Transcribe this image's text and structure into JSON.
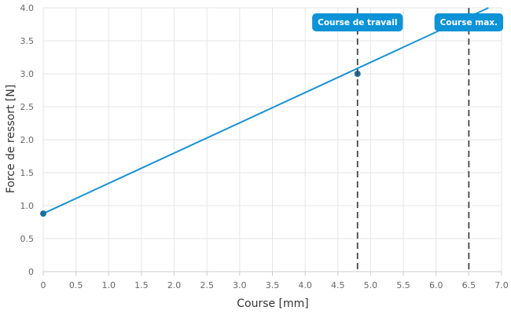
{
  "chart_data": {
    "type": "line",
    "xlabel": "Course [mm]",
    "ylabel": "Force de ressort [N]",
    "xlim": [
      0,
      7.0
    ],
    "ylim": [
      0,
      4.0
    ],
    "grid": true,
    "x_ticks": [
      "0",
      "0.5",
      "1.0",
      "1.5",
      "2.0",
      "2.5",
      "3.0",
      "3.5",
      "4.0",
      "4.5",
      "5.0",
      "5.5",
      "6.0",
      "6.5",
      "7.0"
    ],
    "y_ticks": [
      "0",
      "0.5",
      "1.0",
      "1.5",
      "2.0",
      "2.5",
      "3.0",
      "3.5",
      "4.0"
    ],
    "series": [
      {
        "color": "#1a92d4",
        "line": [
          [
            0,
            0.88
          ],
          [
            6.8,
            4.0
          ]
        ],
        "points": [
          [
            0,
            0.88
          ],
          [
            4.8,
            3.0
          ]
        ]
      }
    ],
    "reference_lines": [
      {
        "x": 4.8,
        "label": "Course de travail"
      },
      {
        "x": 6.5,
        "label": "Course max."
      }
    ],
    "colors": {
      "line": "#1a92d4",
      "marker": "#1a6f9e",
      "flag": "#0d93d6",
      "reference": "#444444",
      "grid": "#e6e6e6"
    }
  }
}
